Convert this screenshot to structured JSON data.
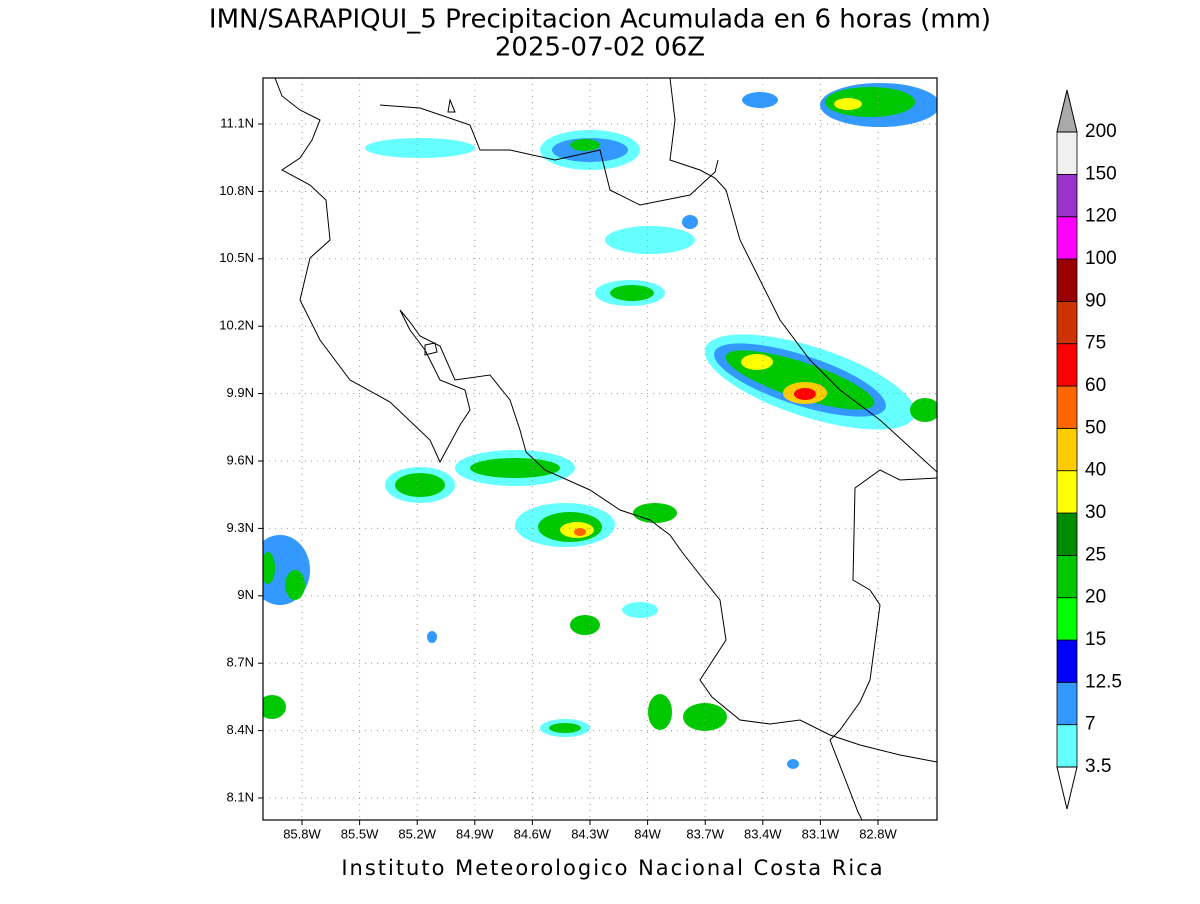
{
  "header": {
    "title": "IMN/SARAPIQUI_5 Precipitacion Acumulada en 6 horas (mm)",
    "subtitle": "2025-07-02 06Z"
  },
  "map": {
    "lat_labels": [
      "11.1N",
      "10.8N",
      "10.5N",
      "10.2N",
      "9.9N",
      "9.6N",
      "9.3N",
      "9N",
      "8.7N",
      "8.4N",
      "8.1N"
    ],
    "lon_labels": [
      "85.8W",
      "85.5W",
      "85.2W",
      "84.9W",
      "84.6W",
      "84.3W",
      "84W",
      "83.7W",
      "83.4W",
      "83.1W",
      "82.8W"
    ]
  },
  "colorbar": {
    "levels": [
      3.5,
      7,
      12.5,
      15,
      20,
      25,
      30,
      40,
      50,
      60,
      75,
      90,
      100,
      120,
      150,
      200
    ],
    "colors": [
      "#66ffff",
      "#3399ff",
      "#0000ff",
      "#00ff00",
      "#00c800",
      "#008c00",
      "#ffff00",
      "#ffcc00",
      "#ff6600",
      "#ff0000",
      "#cc3300",
      "#990000",
      "#ff00ff",
      "#9933cc",
      "#f0f0f0"
    ],
    "over_color": "#aaaaaa",
    "under_color": "#ffffff"
  },
  "footer": {
    "text": "Instituto Meteorologico Nacional Costa Rica"
  }
}
